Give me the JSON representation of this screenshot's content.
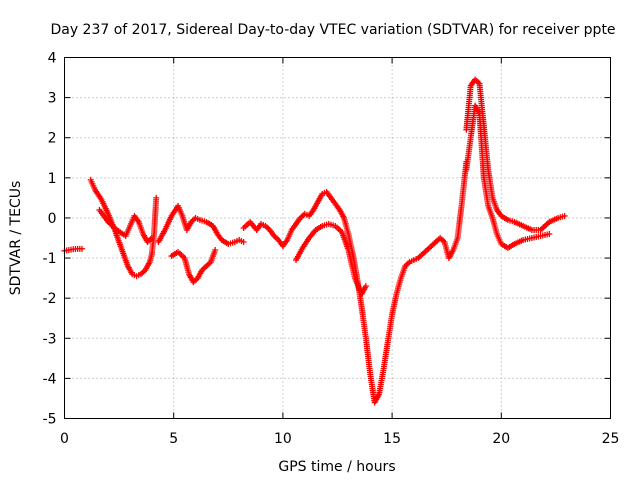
{
  "chart_data": {
    "type": "scatter",
    "title": "Day 237 of 2017, Sidereal Day-to-day VTEC variation (SDTVAR) for receiver ppte",
    "xlabel": "GPS time / hours",
    "ylabel": "SDTVAR / TECUs",
    "xlim": [
      0,
      25
    ],
    "ylim": [
      -5,
      4
    ],
    "xticks": [
      "0",
      "5",
      "10",
      "15",
      "20",
      "25"
    ],
    "yticks": [
      "-5",
      "-4",
      "-3",
      "-2",
      "-1",
      "0",
      "1",
      "2",
      "3",
      "4"
    ],
    "grid": true,
    "marker": "plus",
    "color": "#ff0000",
    "series": [
      {
        "name": "segment-1",
        "x": [
          0.0,
          0.2,
          0.4,
          0.6,
          0.8
        ],
        "y": [
          -0.82,
          -0.8,
          -0.78,
          -0.77,
          -0.77
        ]
      },
      {
        "name": "segment-2",
        "x": [
          1.2,
          1.4,
          1.7,
          2.0,
          2.3,
          2.6,
          2.9,
          3.1,
          3.3,
          3.5,
          3.7,
          3.9,
          4.0,
          4.1,
          4.2
        ],
        "y": [
          0.95,
          0.7,
          0.45,
          0.1,
          -0.3,
          -0.75,
          -1.2,
          -1.4,
          -1.45,
          -1.4,
          -1.3,
          -1.1,
          -0.9,
          -0.4,
          0.5
        ]
      },
      {
        "name": "segment-3",
        "x": [
          1.6,
          2.0,
          2.4,
          2.8,
          3.0,
          3.2,
          3.4,
          3.6,
          3.8,
          4.0
        ],
        "y": [
          0.2,
          -0.1,
          -0.3,
          -0.45,
          -0.2,
          0.05,
          -0.1,
          -0.4,
          -0.6,
          -0.5
        ]
      },
      {
        "name": "segment-4",
        "x": [
          4.3,
          4.6,
          4.9,
          5.2,
          5.4,
          5.6,
          5.8,
          6.0,
          6.2,
          6.5,
          6.8,
          7.0,
          7.2,
          7.5,
          7.8,
          8.0,
          8.2
        ],
        "y": [
          -0.6,
          -0.3,
          0.05,
          0.3,
          0.05,
          -0.3,
          -0.1,
          0.0,
          -0.05,
          -0.1,
          -0.2,
          -0.4,
          -0.55,
          -0.65,
          -0.6,
          -0.55,
          -0.6
        ]
      },
      {
        "name": "segment-5",
        "x": [
          4.9,
          5.2,
          5.5,
          5.7,
          5.9,
          6.1,
          6.3,
          6.5,
          6.7,
          6.9
        ],
        "y": [
          -0.95,
          -0.85,
          -1.0,
          -1.4,
          -1.6,
          -1.5,
          -1.3,
          -1.2,
          -1.1,
          -0.8
        ]
      },
      {
        "name": "segment-6",
        "x": [
          8.2,
          8.5,
          8.8,
          9.0,
          9.2,
          9.4,
          9.6,
          9.8,
          10.0,
          10.2,
          10.4,
          10.6,
          10.8,
          11.0,
          11.2,
          11.4,
          11.6,
          11.8,
          12.0,
          12.2,
          12.4,
          12.6,
          12.8,
          13.0,
          13.2,
          13.4,
          13.6,
          13.8,
          14.0,
          14.2,
          14.4,
          14.6,
          14.8,
          15.0,
          15.2,
          15.4,
          15.6,
          15.8,
          16.0,
          16.2,
          16.4,
          16.6,
          16.8,
          17.0,
          17.2,
          17.4,
          17.6,
          17.8,
          18.0,
          18.2,
          18.4
        ],
        "y": [
          -0.25,
          -0.1,
          -0.3,
          -0.15,
          -0.2,
          -0.3,
          -0.45,
          -0.55,
          -0.7,
          -0.55,
          -0.3,
          -0.15,
          0.0,
          0.1,
          0.05,
          0.2,
          0.4,
          0.6,
          0.65,
          0.5,
          0.35,
          0.2,
          0.0,
          -0.4,
          -0.9,
          -1.5,
          -2.2,
          -3.0,
          -3.9,
          -4.6,
          -4.4,
          -3.8,
          -3.1,
          -2.4,
          -1.9,
          -1.5,
          -1.2,
          -1.1,
          -1.05,
          -1.0,
          -0.9,
          -0.8,
          -0.7,
          -0.6,
          -0.5,
          -0.6,
          -1.0,
          -0.8,
          -0.5,
          0.4,
          1.4
        ]
      },
      {
        "name": "segment-7",
        "x": [
          10.6,
          10.9,
          11.2,
          11.5,
          11.8,
          12.1,
          12.4,
          12.7,
          13.0,
          13.3,
          13.6,
          13.8
        ],
        "y": [
          -1.05,
          -0.75,
          -0.5,
          -0.3,
          -0.2,
          -0.15,
          -0.2,
          -0.35,
          -0.8,
          -1.5,
          -1.9,
          -1.7
        ]
      },
      {
        "name": "segment-8",
        "x": [
          18.4,
          18.6,
          18.8,
          19.0,
          19.2,
          19.4,
          19.6,
          19.8,
          20.0,
          20.3,
          20.6,
          21.0,
          21.4,
          21.8,
          22.2,
          22.6,
          22.9
        ],
        "y": [
          2.2,
          3.3,
          3.45,
          3.35,
          2.3,
          1.2,
          0.5,
          0.2,
          0.05,
          -0.05,
          -0.1,
          -0.2,
          -0.3,
          -0.3,
          -0.1,
          0.0,
          0.05
        ]
      },
      {
        "name": "segment-9",
        "x": [
          18.4,
          18.6,
          18.8,
          19.0,
          19.2,
          19.4,
          19.6,
          19.8,
          20.0,
          20.3,
          20.6,
          21.0,
          21.4,
          21.8,
          22.2
        ],
        "y": [
          1.2,
          2.0,
          2.8,
          2.6,
          1.0,
          0.3,
          0.0,
          -0.4,
          -0.65,
          -0.75,
          -0.65,
          -0.55,
          -0.5,
          -0.45,
          -0.4
        ]
      }
    ]
  }
}
